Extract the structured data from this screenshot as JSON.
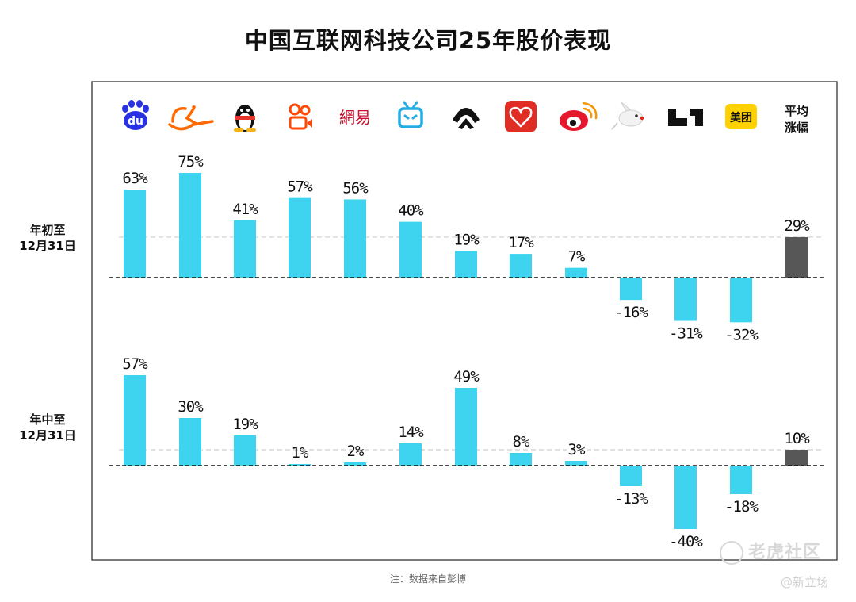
{
  "title": "中国互联网科技公司25年股价表现",
  "row_labels": [
    "年初至\n12月31日",
    "年中至\n12月31日"
  ],
  "avg_header": [
    "平均",
    "涨幅"
  ],
  "footnote": "注：数据来自彭博",
  "watermark": {
    "brand": "老虎社区",
    "credit": "@新立场"
  },
  "colors": {
    "bar": "#3ed4ef",
    "avg_bar": "#575757",
    "frame": "#333333",
    "avg_line": "#cfcfcf"
  },
  "logos": [
    {
      "icon": "baidu-icon",
      "text": "du",
      "color": "#2932e1"
    },
    {
      "icon": "alibaba-icon",
      "text": "",
      "color": "#ff6a00"
    },
    {
      "icon": "tencent-qq-penguin-icon",
      "text": "",
      "color": "#111111"
    },
    {
      "icon": "kuaishou-icon",
      "text": "",
      "color": "#ff4906"
    },
    {
      "icon": "netease-icon",
      "text": "網易",
      "color": "#c8102e"
    },
    {
      "icon": "bilibili-icon",
      "text": "",
      "color": "#23ade5"
    },
    {
      "icon": "nio-icon",
      "text": "",
      "color": "#111111"
    },
    {
      "icon": "pinduoduo-icon",
      "text": "",
      "color": "#e02e24"
    },
    {
      "icon": "weibo-icon",
      "text": "",
      "color": "#e6162d"
    },
    {
      "icon": "jd-dog-icon",
      "text": "",
      "color": "#e1251b"
    },
    {
      "icon": "li-auto-icon",
      "text": "",
      "color": "#111111"
    },
    {
      "icon": "meituan-icon",
      "text": "美团",
      "color": "#ffd100"
    }
  ],
  "chart_data": [
    {
      "type": "bar",
      "title": "年初至12月31日",
      "values": [
        63,
        75,
        41,
        57,
        56,
        40,
        19,
        17,
        7,
        -16,
        -31,
        -32
      ],
      "labels": [
        "63%",
        "75%",
        "41%",
        "57%",
        "56%",
        "40%",
        "19%",
        "17%",
        "7%",
        "-16%",
        "-31%",
        "-32%"
      ],
      "average": 29,
      "average_label": "29%"
    },
    {
      "type": "bar",
      "title": "年中至12月31日",
      "values": [
        57,
        30,
        19,
        1,
        2,
        14,
        49,
        8,
        3,
        -13,
        -40,
        -18
      ],
      "labels": [
        "57%",
        "30%",
        "19%",
        "1%",
        "2%",
        "14%",
        "49%",
        "8%",
        "3%",
        "-13%",
        "-40%",
        "-18%"
      ],
      "average": 10,
      "average_label": "10%"
    }
  ]
}
